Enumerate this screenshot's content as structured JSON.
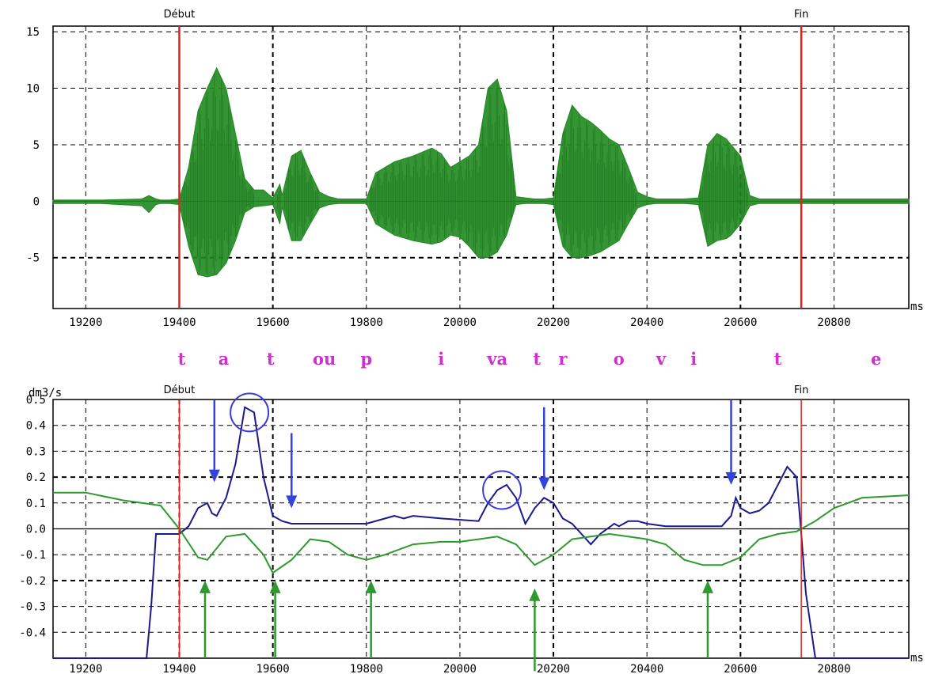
{
  "chart_data": [
    {
      "type": "line",
      "title": "",
      "xlabel": "ms",
      "ylabel": "",
      "xlim": [
        19130,
        20960
      ],
      "ylim": [
        -9.5,
        15.5
      ],
      "x_ticks": [
        19200,
        19400,
        19600,
        19800,
        20000,
        20200,
        20400,
        20600,
        20800
      ],
      "y_ticks": [
        15,
        10,
        5,
        0,
        -5
      ],
      "grid": true,
      "markers": [
        {
          "label": "Début",
          "x": 19400,
          "color": "#e0201c"
        },
        {
          "label": "Fin",
          "x": 20730,
          "color": "#e0201c"
        }
      ],
      "series": [
        {
          "color": "#1f8a1f",
          "kind": "waveform-envelope",
          "x": [
            19130,
            19230,
            19320,
            19335,
            19350,
            19360,
            19380,
            19400,
            19420,
            19440,
            19460,
            19480,
            19500,
            19520,
            19540,
            19560,
            19580,
            19600,
            19615,
            19620,
            19640,
            19660,
            19680,
            19700,
            19720,
            19740,
            19760,
            19780,
            19800,
            19820,
            19860,
            19900,
            19940,
            19960,
            19980,
            20000,
            20020,
            20040,
            20060,
            20080,
            20100,
            20120,
            20140,
            20160,
            20180,
            20200,
            20220,
            20240,
            20260,
            20280,
            20300,
            20320,
            20340,
            20360,
            20380,
            20400,
            20420,
            20440,
            20480,
            20510,
            20530,
            20550,
            20570,
            20580,
            20600,
            20620,
            20640,
            20660,
            20700,
            20730,
            20760,
            20960
          ],
          "upper": [
            0.1,
            0.1,
            0.2,
            0.5,
            0.2,
            0.1,
            0.1,
            0.2,
            3,
            8,
            10,
            11.8,
            10,
            6,
            2,
            1,
            1,
            0.3,
            1.5,
            0.5,
            4,
            4.5,
            2.5,
            0.8,
            0.4,
            0.2,
            0.2,
            0.2,
            0.2,
            2.5,
            3.5,
            4,
            4.7,
            4.2,
            3,
            3.5,
            4,
            5,
            10,
            10.8,
            8,
            0.4,
            0.3,
            0.2,
            0.2,
            0.3,
            6,
            8.5,
            7.5,
            7,
            6.3,
            5.5,
            5,
            3,
            0.8,
            0.4,
            0.2,
            0.2,
            0.2,
            0.3,
            5,
            6,
            5.5,
            5,
            4,
            0.5,
            0.2,
            0.2,
            0.2,
            0.2,
            0.2,
            0.2
          ],
          "lower": [
            -0.2,
            -0.2,
            -0.4,
            -1,
            -0.3,
            -0.2,
            -0.2,
            -0.3,
            -4,
            -6.5,
            -6.7,
            -6.5,
            -5.5,
            -3.5,
            -1,
            -0.5,
            -0.4,
            -0.3,
            -2,
            -0.5,
            -3.5,
            -3.5,
            -2,
            -0.6,
            -0.3,
            -0.2,
            -0.2,
            -0.2,
            -0.2,
            -2,
            -3,
            -3.5,
            -3.8,
            -3.6,
            -3,
            -3.2,
            -4,
            -5,
            -5,
            -4.5,
            -3,
            -0.3,
            -0.2,
            -0.2,
            -0.2,
            -0.3,
            -4,
            -5,
            -5,
            -4.8,
            -4.5,
            -4,
            -3.5,
            -2,
            -0.6,
            -0.3,
            -0.2,
            -0.2,
            -0.2,
            -0.3,
            -4,
            -3.5,
            -3.3,
            -3,
            -2,
            -0.4,
            -0.2,
            -0.2,
            -0.2,
            -0.2,
            -0.2,
            -0.2
          ]
        }
      ]
    },
    {
      "type": "line",
      "title": "",
      "xlabel": "ms",
      "ylabel": "dm3/s",
      "xlim": [
        19130,
        20960
      ],
      "ylim": [
        -0.5,
        0.5
      ],
      "x_ticks": [
        19200,
        19400,
        19600,
        19800,
        20000,
        20200,
        20400,
        20600,
        20800
      ],
      "y_ticks": [
        "0.5",
        "0.4",
        "0.3",
        "0.2",
        "0.1",
        "0.0",
        "-0.1",
        "-0.2",
        "-0.3",
        "-0.4"
      ],
      "grid": true,
      "markers": [
        {
          "label": "Début",
          "x": 19400,
          "color": "#e0201c"
        },
        {
          "label": "Fin",
          "x": 20730,
          "color": "#e0201c"
        }
      ],
      "series": [
        {
          "color": "#1a1a8c",
          "x": [
            19130,
            19330,
            19340,
            19350,
            19400,
            19420,
            19440,
            19460,
            19470,
            19480,
            19500,
            19520,
            19540,
            19560,
            19580,
            19600,
            19620,
            19640,
            19660,
            19700,
            19760,
            19800,
            19840,
            19860,
            19880,
            19900,
            19960,
            20040,
            20060,
            20080,
            20100,
            20120,
            20140,
            20160,
            20180,
            20200,
            20220,
            20240,
            20260,
            20280,
            20300,
            20330,
            20340,
            20360,
            20380,
            20400,
            20440,
            20480,
            20520,
            20560,
            20580,
            20590,
            20600,
            20620,
            20640,
            20660,
            20680,
            20700,
            20720,
            20730,
            20740,
            20760,
            20800,
            20960
          ],
          "y": [
            -0.5,
            -0.5,
            -0.3,
            -0.02,
            -0.02,
            0.01,
            0.08,
            0.1,
            0.06,
            0.05,
            0.12,
            0.25,
            0.47,
            0.45,
            0.2,
            0.05,
            0.03,
            0.02,
            0.02,
            0.02,
            0.02,
            0.02,
            0.04,
            0.05,
            0.04,
            0.05,
            0.04,
            0.03,
            0.1,
            0.15,
            0.17,
            0.12,
            0.02,
            0.08,
            0.12,
            0.1,
            0.04,
            0.02,
            -0.02,
            -0.06,
            -0.02,
            0.02,
            0.01,
            0.03,
            0.03,
            0.02,
            0.01,
            0.01,
            0.01,
            0.01,
            0.05,
            0.12,
            0.08,
            0.06,
            0.07,
            0.1,
            0.17,
            0.24,
            0.2,
            -0.02,
            -0.25,
            -0.5,
            -0.5,
            -0.5
          ]
        },
        {
          "color": "#2e9a2e",
          "x": [
            19130,
            19200,
            19280,
            19320,
            19360,
            19400,
            19440,
            19460,
            19500,
            19540,
            19580,
            19600,
            19640,
            19680,
            19720,
            19760,
            19800,
            19840,
            19900,
            19960,
            20000,
            20040,
            20080,
            20120,
            20160,
            20200,
            20240,
            20280,
            20320,
            20360,
            20400,
            20440,
            20480,
            20520,
            20560,
            20600,
            20640,
            20680,
            20720,
            20760,
            20800,
            20860,
            20960
          ],
          "y": [
            0.14,
            0.14,
            0.11,
            0.1,
            0.09,
            0.0,
            -0.11,
            -0.12,
            -0.03,
            -0.02,
            -0.1,
            -0.17,
            -0.12,
            -0.04,
            -0.05,
            -0.1,
            -0.12,
            -0.1,
            -0.06,
            -0.05,
            -0.05,
            -0.04,
            -0.03,
            -0.06,
            -0.14,
            -0.1,
            -0.04,
            -0.03,
            -0.02,
            -0.03,
            -0.04,
            -0.06,
            -0.12,
            -0.14,
            -0.14,
            -0.11,
            -0.04,
            -0.02,
            -0.01,
            0.03,
            0.08,
            0.12,
            0.13
          ]
        }
      ],
      "annotations": {
        "circles": [
          {
            "x": 19550,
            "y": 0.45
          },
          {
            "x": 20090,
            "y": 0.15
          }
        ],
        "blue_arrows": [
          {
            "x": 19475,
            "y_tail": 0.5,
            "y_head": 0.18
          },
          {
            "x": 19640,
            "y_tail": 0.37,
            "y_head": 0.08
          },
          {
            "x": 20180,
            "y_tail": 0.47,
            "y_head": 0.15
          },
          {
            "x": 20580,
            "y_tail": 0.5,
            "y_head": 0.17
          }
        ],
        "green_arrows": [
          {
            "x": 19455,
            "y_tail": -0.5,
            "y_head": -0.2
          },
          {
            "x": 19605,
            "y_tail": -0.5,
            "y_head": -0.2
          },
          {
            "x": 19810,
            "y_tail": -0.5,
            "y_head": -0.2
          },
          {
            "x": 20160,
            "y_tail": -0.55,
            "y_head": -0.23
          },
          {
            "x": 20530,
            "y_tail": -0.5,
            "y_head": -0.2
          }
        ]
      }
    }
  ],
  "phonetic": [
    {
      "text": "t",
      "x": 19405
    },
    {
      "text": "a",
      "x": 19495
    },
    {
      "text": "t",
      "x": 19595
    },
    {
      "text": "ou",
      "x": 19710
    },
    {
      "text": "p",
      "x": 19800
    },
    {
      "text": "i",
      "x": 19960
    },
    {
      "text": "va",
      "x": 20080
    },
    {
      "text": "t",
      "x": 20165
    },
    {
      "text": "r",
      "x": 20220
    },
    {
      "text": "o",
      "x": 20340
    },
    {
      "text": "v",
      "x": 20430
    },
    {
      "text": "i",
      "x": 20500
    },
    {
      "text": "t",
      "x": 20680
    },
    {
      "text": "e",
      "x": 20890
    }
  ]
}
